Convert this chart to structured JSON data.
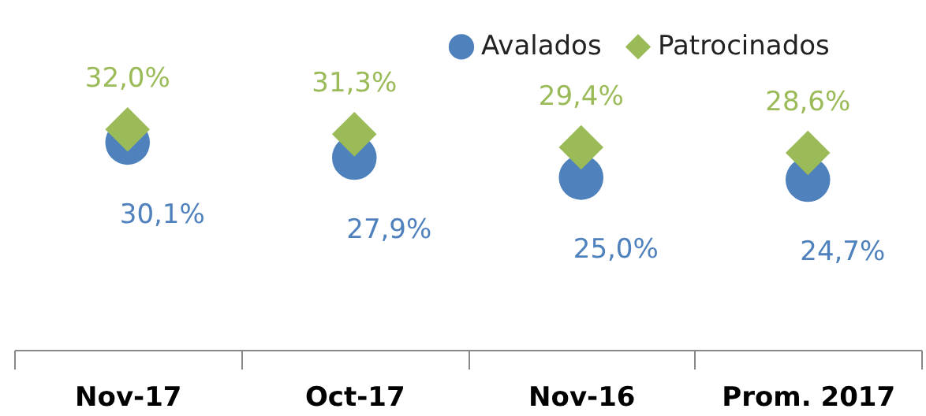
{
  "chart_data": {
    "type": "scatter",
    "categories": [
      "Nov-17",
      "Oct-17",
      "Nov-16",
      "Prom. 2017"
    ],
    "series": [
      {
        "name": "Avalados",
        "color": "#4f81bd",
        "marker": "circle",
        "values": [
          30.1,
          27.9,
          25.0,
          24.7
        ],
        "value_labels": [
          "30,1%",
          "27,9%",
          "25,0%",
          "24,7%"
        ]
      },
      {
        "name": "Patrocinados",
        "color": "#9bbb59",
        "marker": "diamond",
        "values": [
          32.0,
          31.3,
          29.4,
          28.6
        ],
        "value_labels": [
          "32,0%",
          "31,3%",
          "29,4%",
          "28,6%"
        ]
      }
    ],
    "legend": "top right",
    "grid": false,
    "tick_labels": "x"
  }
}
